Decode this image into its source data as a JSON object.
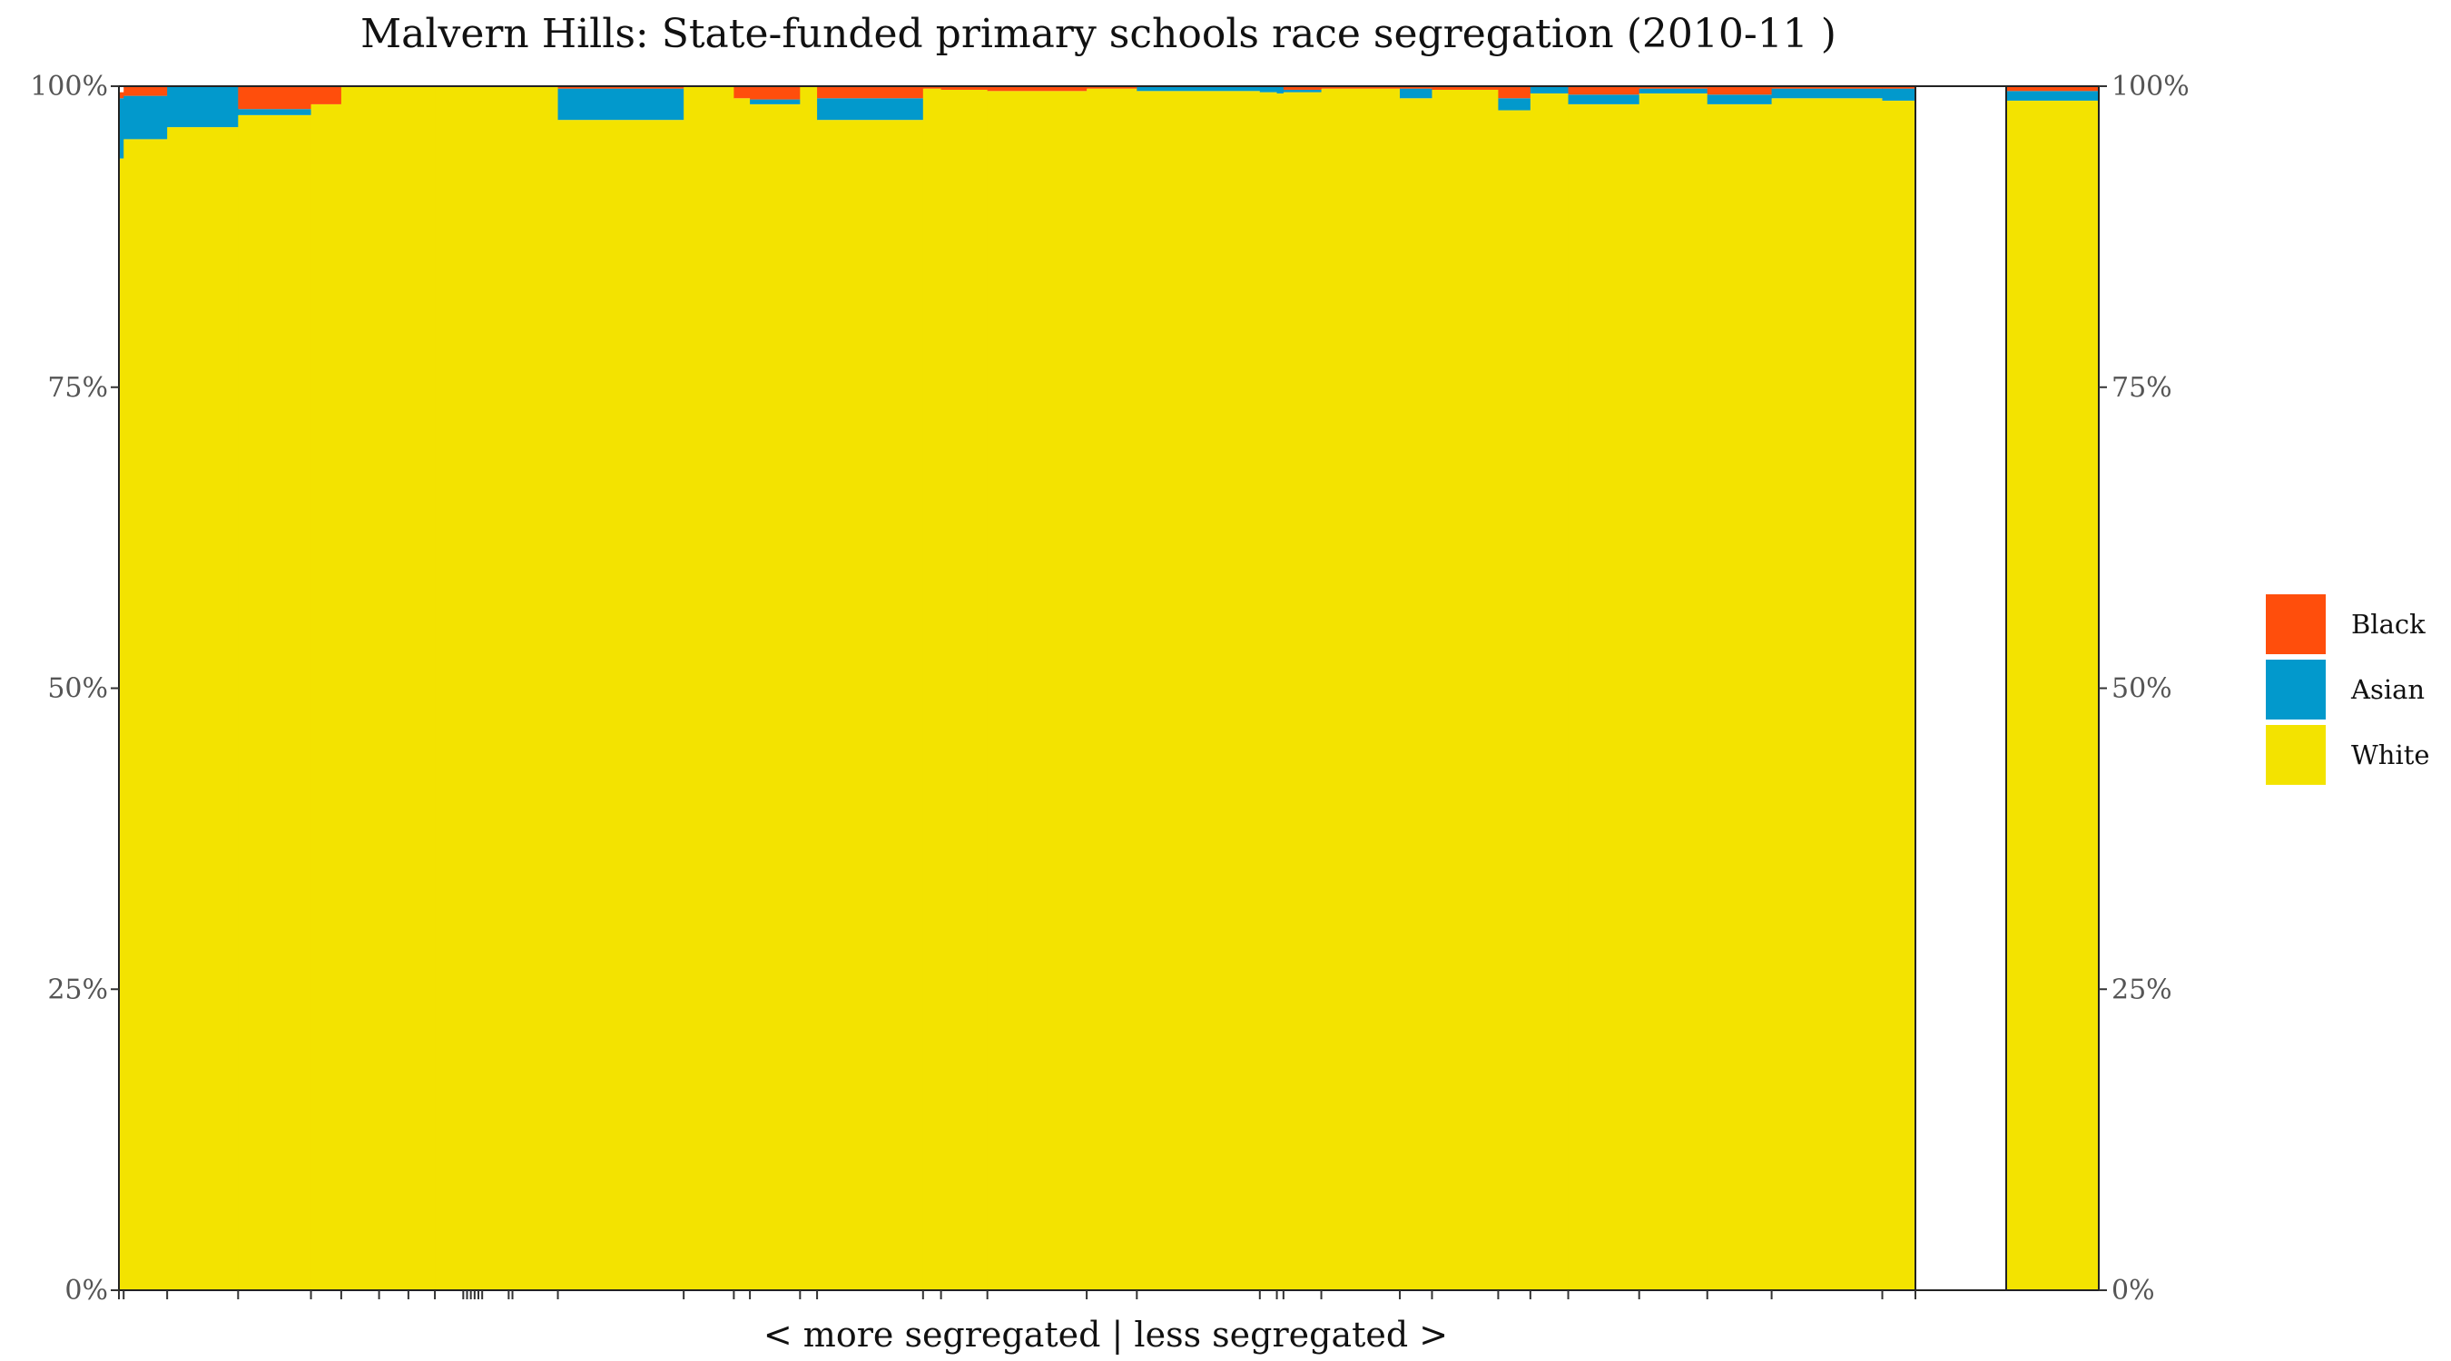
{
  "chart_data": {
    "type": "bar",
    "stacked": true,
    "variable_width": true,
    "title": "Malvern Hills: State-funded primary schools race segregation (2010-11 )",
    "xlabel": "< more segregated | less segregated >",
    "ylabel": "",
    "ylim": [
      0,
      100
    ],
    "y_ticks": [
      "0%",
      "25%",
      "50%",
      "75%",
      "100%"
    ],
    "y_ticks_right": [
      "0%",
      "25%",
      "50%",
      "75%",
      "100%"
    ],
    "grid": false,
    "legend_position": "right",
    "colors": {
      "Black": "#ff4e0c",
      "Asian": "#0299cc",
      "White": "#f3e300"
    },
    "legend": [
      {
        "name": "Black",
        "color": "#ff4e0c"
      },
      {
        "name": "Asian",
        "color": "#0299cc"
      },
      {
        "name": "White",
        "color": "#f3e300"
      }
    ],
    "series_order": [
      "White",
      "Asian",
      "Black"
    ],
    "schools": [
      {
        "pupils": 5,
        "White": 94.0,
        "Asian": 5.0,
        "Black": 0.5
      },
      {
        "pupils": 46,
        "White": 95.6,
        "Asian": 3.6,
        "Black": 0.8
      },
      {
        "pupils": 75,
        "White": 96.6,
        "Asian": 3.4,
        "Black": 0.0
      },
      {
        "pupils": 77,
        "White": 97.6,
        "Asian": 0.5,
        "Black": 1.9
      },
      {
        "pupils": 32,
        "White": 98.5,
        "Asian": 0.0,
        "Black": 1.5
      },
      {
        "pupils": 40,
        "White": 100.0,
        "Asian": 0.0,
        "Black": 0.0
      },
      {
        "pupils": 31,
        "White": 100.0,
        "Asian": 0.0,
        "Black": 0.0
      },
      {
        "pupils": 28,
        "White": 100.0,
        "Asian": 0.0,
        "Black": 0.0
      },
      {
        "pupils": 30,
        "White": 100.0,
        "Asian": 0.0,
        "Black": 0.0
      },
      {
        "pupils": 4,
        "White": 100.0,
        "Asian": 0.0,
        "Black": 0.0
      },
      {
        "pupils": 4,
        "White": 100.0,
        "Asian": 0.0,
        "Black": 0.0
      },
      {
        "pupils": 4,
        "White": 100.0,
        "Asian": 0.0,
        "Black": 0.0
      },
      {
        "pupils": 4,
        "White": 100.0,
        "Asian": 0.0,
        "Black": 0.0
      },
      {
        "pupils": 4,
        "White": 100.0,
        "Asian": 0.0,
        "Black": 0.0
      },
      {
        "pupils": 28,
        "White": 100.0,
        "Asian": 0.0,
        "Black": 0.0
      },
      {
        "pupils": 4,
        "White": 100.0,
        "Asian": 0.0,
        "Black": 0.0
      },
      {
        "pupils": 48,
        "White": 100.0,
        "Asian": 0.0,
        "Black": 0.0
      },
      {
        "pupils": 133,
        "White": 97.2,
        "Asian": 2.6,
        "Black": 0.2
      },
      {
        "pupils": 53,
        "White": 100.0,
        "Asian": 0.0,
        "Black": 0.0
      },
      {
        "pupils": 17,
        "White": 99.0,
        "Asian": 0.0,
        "Black": 1.0
      },
      {
        "pupils": 53,
        "White": 98.5,
        "Asian": 0.4,
        "Black": 1.1
      },
      {
        "pupils": 18,
        "White": 100.0,
        "Asian": 0.0,
        "Black": 0.0
      },
      {
        "pupils": 112,
        "White": 97.2,
        "Asian": 1.8,
        "Black": 1.0
      },
      {
        "pupils": 19,
        "White": 99.8,
        "Asian": 0.0,
        "Black": 0.2
      },
      {
        "pupils": 49,
        "White": 99.7,
        "Asian": 0.0,
        "Black": 0.3
      },
      {
        "pupils": 105,
        "White": 99.6,
        "Asian": 0.0,
        "Black": 0.4
      },
      {
        "pupils": 53,
        "White": 99.8,
        "Asian": 0.0,
        "Black": 0.2
      },
      {
        "pupils": 130,
        "White": 99.6,
        "Asian": 0.4,
        "Black": 0.0
      },
      {
        "pupils": 18,
        "White": 99.5,
        "Asian": 0.5,
        "Black": 0.0
      },
      {
        "pupils": 7,
        "White": 99.4,
        "Asian": 0.6,
        "Black": 0.0
      },
      {
        "pupils": 40,
        "White": 99.5,
        "Asian": 0.2,
        "Black": 0.3
      },
      {
        "pupils": 83,
        "White": 99.8,
        "Asian": 0.0,
        "Black": 0.2
      },
      {
        "pupils": 34,
        "White": 99.0,
        "Asian": 0.8,
        "Black": 0.2
      },
      {
        "pupils": 70,
        "White": 99.7,
        "Asian": 0.0,
        "Black": 0.3
      },
      {
        "pupils": 34,
        "White": 98.0,
        "Asian": 1.0,
        "Black": 1.0
      },
      {
        "pupils": 40,
        "White": 99.4,
        "Asian": 0.6,
        "Black": 0.0
      },
      {
        "pupils": 75,
        "White": 98.5,
        "Asian": 0.8,
        "Black": 0.7
      },
      {
        "pupils": 72,
        "White": 99.4,
        "Asian": 0.4,
        "Black": 0.2
      },
      {
        "pupils": 68,
        "White": 98.5,
        "Asian": 0.8,
        "Black": 0.7
      },
      {
        "pupils": 117,
        "White": 99.0,
        "Asian": 0.8,
        "Black": 0.2
      },
      {
        "pupils": 35,
        "White": 98.8,
        "Asian": 1.0,
        "Black": 0.2
      }
    ],
    "overall": {
      "label": "",
      "White": 98.8,
      "Asian": 0.8,
      "Black": 0.4
    }
  }
}
